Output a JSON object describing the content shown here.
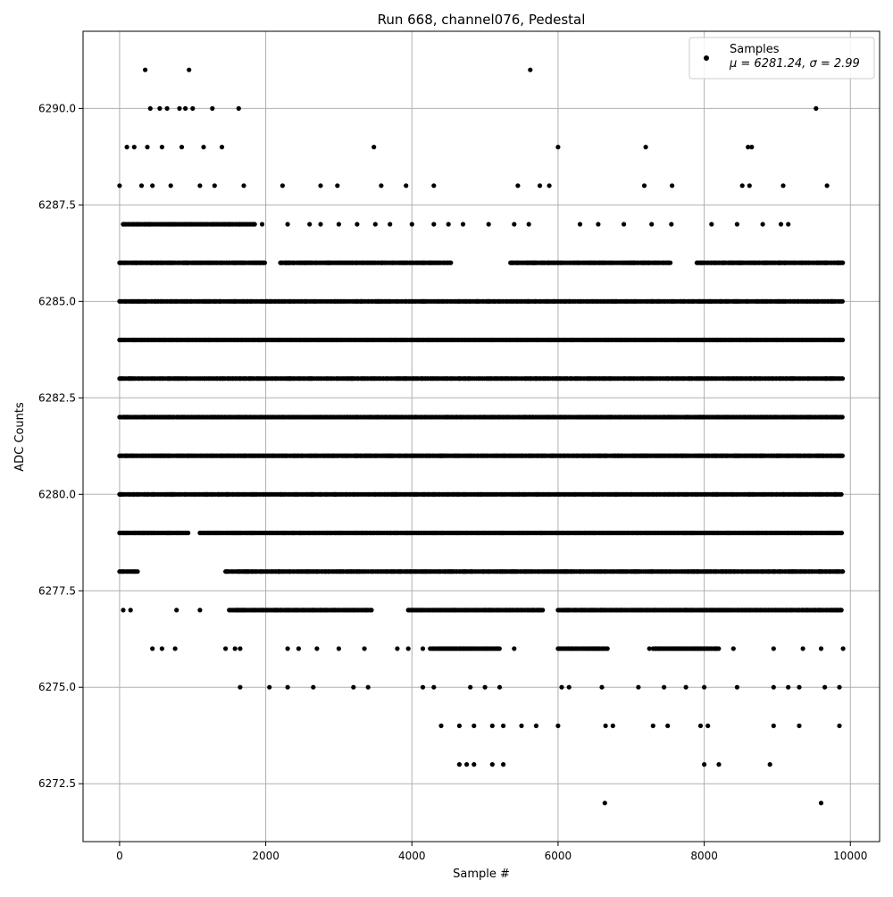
{
  "chart_data": {
    "type": "scatter",
    "title": "Run 668, channel076, Pedestal",
    "xlabel": "Sample #",
    "ylabel": "ADC Counts",
    "xlim": [
      -500,
      10400
    ],
    "ylim": [
      6271.0,
      6292.0
    ],
    "x_ticks": [
      0,
      2000,
      4000,
      6000,
      8000,
      10000
    ],
    "x_tick_labels": [
      "0",
      "2000",
      "4000",
      "6000",
      "8000",
      "10000"
    ],
    "y_ticks": [
      6272.5,
      6275.0,
      6277.5,
      6280.0,
      6282.5,
      6285.0,
      6287.5,
      6290.0
    ],
    "y_tick_labels": [
      "6272.5",
      "6275.0",
      "6277.5",
      "6280.0",
      "6282.5",
      "6285.0",
      "6287.5",
      "6290.0"
    ],
    "grid": true,
    "legend": {
      "placement": "top-right",
      "entries": [
        {
          "name": "Samples",
          "detail": "μ = 6281.24, σ = 2.99"
        }
      ]
    },
    "marker_color": "#000000",
    "series": [
      {
        "name": "Samples",
        "points": [
          [
            0,
            6288
          ],
          [
            50,
            6287
          ],
          [
            100,
            6289
          ],
          [
            200,
            6289
          ],
          [
            300,
            6288
          ],
          [
            350,
            6291
          ],
          [
            380,
            6289
          ],
          [
            420,
            6290
          ],
          [
            450,
            6288
          ],
          [
            550,
            6290
          ],
          [
            580,
            6289
          ],
          [
            650,
            6290
          ],
          [
            700,
            6288
          ],
          [
            820,
            6290
          ],
          [
            850,
            6289
          ],
          [
            900,
            6290
          ],
          [
            950,
            6291
          ],
          [
            1000,
            6290
          ],
          [
            1100,
            6288
          ],
          [
            1150,
            6289
          ],
          [
            1270,
            6290
          ],
          [
            1300,
            6288
          ],
          [
            1400,
            6289
          ],
          [
            1630,
            6290
          ],
          [
            1700,
            6288
          ],
          [
            3480,
            6289
          ],
          [
            5620,
            6291
          ],
          [
            6000,
            6289
          ],
          [
            7200,
            6289
          ],
          [
            7560,
            6288
          ],
          [
            8600,
            6289
          ],
          [
            8650,
            6289
          ],
          [
            9080,
            6288
          ],
          [
            9530,
            6290
          ],
          [
            9680,
            6288
          ],
          [
            2230,
            6288
          ],
          [
            2750,
            6288
          ],
          [
            2980,
            6288
          ],
          [
            3580,
            6288
          ],
          [
            3920,
            6288
          ],
          [
            4300,
            6288
          ],
          [
            5450,
            6288
          ],
          [
            5750,
            6288
          ],
          [
            5880,
            6288
          ],
          [
            7180,
            6288
          ],
          [
            8520,
            6288
          ],
          [
            8620,
            6288
          ],
          [
            50,
            6287
          ],
          [
            200,
            6287
          ],
          [
            400,
            6287
          ],
          [
            1500,
            6287
          ],
          [
            1650,
            6287
          ],
          [
            1950,
            6287
          ],
          [
            2300,
            6287
          ],
          [
            2600,
            6287
          ],
          [
            2750,
            6287
          ],
          [
            3000,
            6287
          ],
          [
            3250,
            6287
          ],
          [
            3500,
            6287
          ],
          [
            3700,
            6287
          ],
          [
            4000,
            6287
          ],
          [
            4300,
            6287
          ],
          [
            4500,
            6287
          ],
          [
            4700,
            6287
          ],
          [
            5050,
            6287
          ],
          [
            5400,
            6287
          ],
          [
            5600,
            6287
          ],
          [
            6300,
            6287
          ],
          [
            6550,
            6287
          ],
          [
            6900,
            6287
          ],
          [
            7280,
            6287
          ],
          [
            7550,
            6287
          ],
          [
            8100,
            6287
          ],
          [
            8450,
            6287
          ],
          [
            8800,
            6287
          ],
          [
            9050,
            6287
          ],
          [
            9150,
            6287
          ],
          [
            4650,
            6276
          ],
          [
            4800,
            6275
          ],
          [
            5000,
            6275
          ],
          [
            5200,
            6275
          ],
          [
            5400,
            6276
          ],
          [
            5500,
            6274
          ],
          [
            5700,
            6274
          ],
          [
            1650,
            6275
          ],
          [
            2050,
            6275
          ],
          [
            2300,
            6275
          ],
          [
            2650,
            6275
          ],
          [
            3200,
            6275
          ],
          [
            3400,
            6275
          ],
          [
            4150,
            6275
          ],
          [
            4300,
            6275
          ],
          [
            6050,
            6275
          ],
          [
            6150,
            6275
          ],
          [
            6600,
            6275
          ],
          [
            7100,
            6275
          ],
          [
            7450,
            6275
          ],
          [
            7750,
            6275
          ],
          [
            8000,
            6275
          ],
          [
            8450,
            6275
          ],
          [
            8950,
            6275
          ],
          [
            9150,
            6275
          ],
          [
            9300,
            6275
          ],
          [
            9650,
            6275
          ],
          [
            9850,
            6275
          ],
          [
            4400,
            6274
          ],
          [
            4650,
            6274
          ],
          [
            4850,
            6274
          ],
          [
            5100,
            6274
          ],
          [
            5250,
            6274
          ],
          [
            6000,
            6274
          ],
          [
            6650,
            6274
          ],
          [
            6750,
            6274
          ],
          [
            7300,
            6274
          ],
          [
            7500,
            6274
          ],
          [
            7950,
            6274
          ],
          [
            8050,
            6274
          ],
          [
            8950,
            6274
          ],
          [
            9300,
            6274
          ],
          [
            9850,
            6274
          ],
          [
            4650,
            6273
          ],
          [
            4750,
            6273
          ],
          [
            4850,
            6273
          ],
          [
            5100,
            6273
          ],
          [
            5250,
            6273
          ],
          [
            8000,
            6273
          ],
          [
            8200,
            6273
          ],
          [
            8900,
            6273
          ],
          [
            6640,
            6272
          ],
          [
            9600,
            6272
          ],
          [
            50,
            6277
          ],
          [
            150,
            6277
          ],
          [
            780,
            6277
          ],
          [
            1100,
            6277
          ],
          [
            450,
            6276
          ],
          [
            580,
            6276
          ],
          [
            760,
            6276
          ],
          [
            1450,
            6276
          ],
          [
            1580,
            6276
          ],
          [
            1650,
            6276
          ],
          [
            2300,
            6276
          ],
          [
            2450,
            6276
          ],
          [
            2700,
            6276
          ],
          [
            3000,
            6276
          ],
          [
            3350,
            6276
          ],
          [
            3800,
            6276
          ],
          [
            3950,
            6276
          ],
          [
            4150,
            6276
          ],
          [
            6200,
            6276
          ],
          [
            6550,
            6276
          ],
          [
            7250,
            6276
          ],
          [
            7600,
            6276
          ],
          [
            8150,
            6276
          ],
          [
            8400,
            6276
          ],
          [
            8950,
            6276
          ],
          [
            9350,
            6276
          ],
          [
            9600,
            6276
          ],
          [
            9900,
            6276
          ]
        ]
      }
    ],
    "dense_bands": [
      {
        "y": 6287,
        "ranges": [
          [
            50,
            1850
          ]
        ]
      },
      {
        "y": 6286,
        "ranges": [
          [
            0,
            2000
          ],
          [
            2200,
            4550
          ],
          [
            5350,
            7550
          ],
          [
            7900,
            9900
          ]
        ]
      },
      {
        "y": 6285,
        "ranges": [
          [
            0,
            9900
          ]
        ]
      },
      {
        "y": 6284,
        "ranges": [
          [
            0,
            9900
          ]
        ]
      },
      {
        "y": 6283,
        "ranges": [
          [
            0,
            9900
          ]
        ]
      },
      {
        "y": 6282,
        "ranges": [
          [
            0,
            9900
          ]
        ]
      },
      {
        "y": 6281,
        "ranges": [
          [
            0,
            9900
          ]
        ]
      },
      {
        "y": 6280,
        "ranges": [
          [
            0,
            9900
          ]
        ]
      },
      {
        "y": 6279,
        "ranges": [
          [
            0,
            950
          ],
          [
            1100,
            9900
          ]
        ]
      },
      {
        "y": 6278,
        "ranges": [
          [
            0,
            250
          ],
          [
            1450,
            9900
          ]
        ]
      },
      {
        "y": 6277,
        "ranges": [
          [
            1500,
            3450
          ],
          [
            3950,
            5800
          ],
          [
            6000,
            9900
          ]
        ]
      },
      {
        "y": 6276,
        "ranges": [
          [
            4250,
            5200
          ],
          [
            6000,
            6700
          ],
          [
            7300,
            8200
          ]
        ]
      }
    ]
  }
}
